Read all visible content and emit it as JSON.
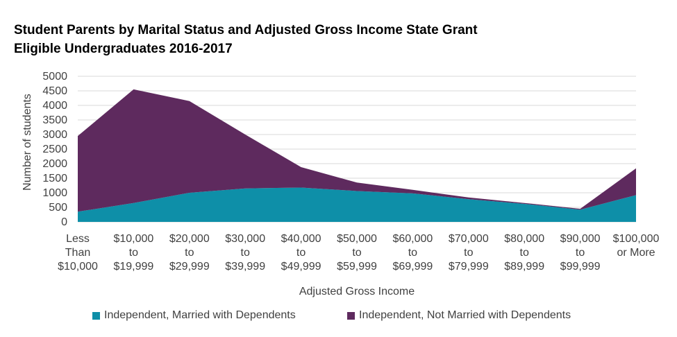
{
  "title_lines": [
    "Student Parents by Marital Status and Adjusted Gross Income State Grant",
    "Eligible Undergraduates 2016-2017"
  ],
  "chart_data": {
    "type": "area",
    "stacked": true,
    "title": "Student Parents by Marital Status and Adjusted Gross Income State Grant Eligible Undergraduates 2016-2017",
    "xlabel": "Adjusted Gross Income",
    "ylabel": "Number of students",
    "ylim": [
      0,
      5000
    ],
    "yticks": [
      0,
      500,
      1000,
      1500,
      2000,
      2500,
      3000,
      3500,
      4000,
      4500,
      5000
    ],
    "grid": true,
    "legend_position": "bottom",
    "categories": [
      [
        "Less",
        "Than",
        "$10,000"
      ],
      [
        "$10,000",
        "to",
        "$19,999"
      ],
      [
        "$20,000",
        "to",
        "$29,999"
      ],
      [
        "$30,000",
        "to",
        "$39,999"
      ],
      [
        "$40,000",
        "to",
        "$49,999"
      ],
      [
        "$50,000",
        "to",
        "$59,999"
      ],
      [
        "$60,000",
        "to",
        "$69,999"
      ],
      [
        "$70,000",
        "to",
        "$79,999"
      ],
      [
        "$80,000",
        "to",
        "$89,999"
      ],
      [
        "$90,000",
        "to",
        "$99,999"
      ],
      [
        "$100,000",
        "or More"
      ]
    ],
    "series": [
      {
        "name": "Independent, Married with Dependents",
        "color": "#0E8FA8",
        "values": [
          350,
          650,
          1000,
          1150,
          1180,
          1060,
          980,
          780,
          620,
          420,
          920
        ]
      },
      {
        "name": "Independent, Not Married with Dependents",
        "color": "#5E2A5E",
        "values": [
          2600,
          3900,
          3150,
          1850,
          700,
          290,
          120,
          60,
          30,
          30,
          920
        ]
      }
    ]
  }
}
